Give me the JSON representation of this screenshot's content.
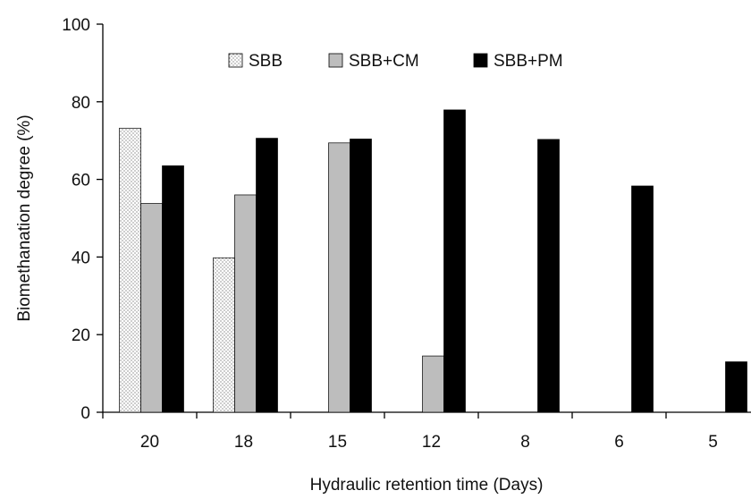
{
  "chart_data": {
    "type": "bar",
    "xlabel": "Hydraulic retention time (Days)",
    "ylabel": "Biomethanation degree (%)",
    "ylim": [
      0,
      100
    ],
    "yticks": [
      "0",
      "20",
      "40",
      "60",
      "80",
      "100"
    ],
    "categories": [
      "20",
      "18",
      "15",
      "12",
      "8",
      "6",
      "5"
    ],
    "series": [
      {
        "name": "SBB",
        "values": [
          73.2,
          39.8,
          null,
          null,
          null,
          null,
          null
        ],
        "pattern": "dots",
        "color": "#ffffff"
      },
      {
        "name": "SBB+CM",
        "values": [
          53.8,
          56.0,
          69.4,
          14.5,
          null,
          null,
          null
        ],
        "pattern": "solid",
        "color": "#bdbdbd"
      },
      {
        "name": "SBB+PM",
        "values": [
          63.5,
          70.6,
          70.4,
          77.9,
          70.3,
          58.3,
          13.0
        ],
        "pattern": "solid",
        "color": "#000000"
      }
    ],
    "legend_position": "top-center",
    "grid": false
  }
}
